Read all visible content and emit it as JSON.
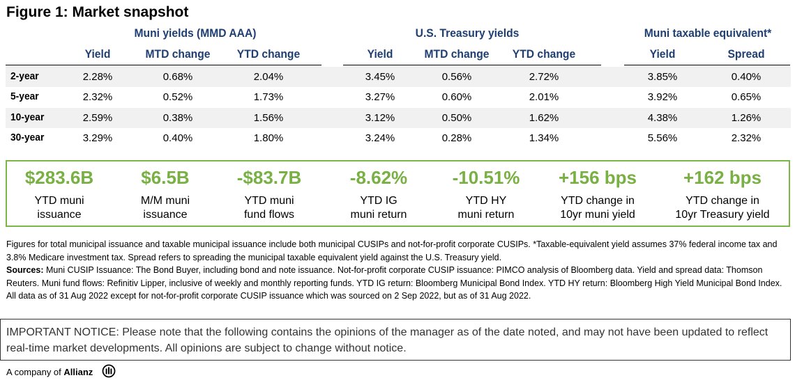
{
  "title": "Figure 1: Market snapshot",
  "groups": {
    "muni": "Muni yields (MMD AAA)",
    "treasury": "U.S. Treasury yields",
    "taxable": "Muni taxable equivalent*"
  },
  "columns": {
    "muni_yield": "Yield",
    "muni_mtd": "MTD change",
    "muni_ytd": "YTD change",
    "tsy_yield": "Yield",
    "tsy_mtd": "MTD change",
    "tsy_ytd": "YTD change",
    "tax_yield": "Yield",
    "tax_spread": "Spread"
  },
  "rows": [
    {
      "label": "2-year",
      "muni_yield": "2.28%",
      "muni_mtd": "0.68%",
      "muni_ytd": "2.04%",
      "tsy_yield": "3.45%",
      "tsy_mtd": "0.56%",
      "tsy_ytd": "2.72%",
      "tax_yield": "3.85%",
      "tax_spread": "0.40%"
    },
    {
      "label": "5-year",
      "muni_yield": "2.32%",
      "muni_mtd": "0.52%",
      "muni_ytd": "1.73%",
      "tsy_yield": "3.27%",
      "tsy_mtd": "0.60%",
      "tsy_ytd": "2.01%",
      "tax_yield": "3.92%",
      "tax_spread": "0.65%"
    },
    {
      "label": "10-year",
      "muni_yield": "2.59%",
      "muni_mtd": "0.38%",
      "muni_ytd": "1.56%",
      "tsy_yield": "3.12%",
      "tsy_mtd": "0.50%",
      "tsy_ytd": "1.62%",
      "tax_yield": "4.38%",
      "tax_spread": "1.26%"
    },
    {
      "label": "30-year",
      "muni_yield": "3.29%",
      "muni_mtd": "0.40%",
      "muni_ytd": "1.80%",
      "tsy_yield": "3.24%",
      "tsy_mtd": "0.28%",
      "tsy_ytd": "1.34%",
      "tax_yield": "5.56%",
      "tax_spread": "2.32%"
    }
  ],
  "kpis": [
    {
      "value": "$283.6B",
      "line1": "YTD muni",
      "line2": "issuance"
    },
    {
      "value": "$6.5B",
      "line1": "M/M muni",
      "line2": "issuance"
    },
    {
      "value": "-$83.7B",
      "line1": "YTD muni",
      "line2": "fund flows"
    },
    {
      "value": "-8.62%",
      "line1": "YTD IG",
      "line2": "muni return"
    },
    {
      "value": "-10.51%",
      "line1": "YTD HY",
      "line2": "muni return"
    },
    {
      "value": "+156 bps",
      "line1": "YTD change in",
      "line2": "10yr muni yield"
    },
    {
      "value": "+162 bps",
      "line1": "YTD change in",
      "line2": "10yr Treasury yield"
    }
  ],
  "notes": {
    "paragraph1": "Figures for total municipal issuance and taxable municipal issuance include both municipal CUSIPs and not-for-profit corporate CUSIPs. *Taxable-equivalent yield assumes 37% federal income tax and 3.8% Medicare investment tax. Spread refers to spreading the municipal taxable equivalent yield against the U.S. Treasury yield.",
    "sources_label": "Sources:",
    "sources_text": " Muni CUSIP Issuance: The Bond Buyer, including bond and note issuance. Not-for-profit corporate CUSIP issuance: PIMCO analysis of Bloomberg data. Yield and spread data: Thomson Reuters. Muni fund flows: Refinitiv Lipper, inclusive of weekly and monthly reporting funds. YTD IG return: Bloomberg Municipal Bond Index. YTD HY return: Bloomberg High Yield Municipal Bond Index. All data as of 31 Aug 2022 except for not-for-profit corporate CUSIP issuance which was sourced on 2 Sep 2022, but as of 31 Aug 2022."
  },
  "notice": "IMPORTANT NOTICE: Please note that the following contains the opinions of the manager as of the date noted, and may not have been updated to reflect real-time market developments. All opinions are subject to change without notice.",
  "footer": {
    "prefix": "A company of ",
    "brand": "Allianz"
  },
  "colors": {
    "header_blue": "#1f3f73",
    "kpi_green": "#78b043",
    "kpi_border": "#7ab648",
    "row_shade": "#f1f1f1"
  }
}
